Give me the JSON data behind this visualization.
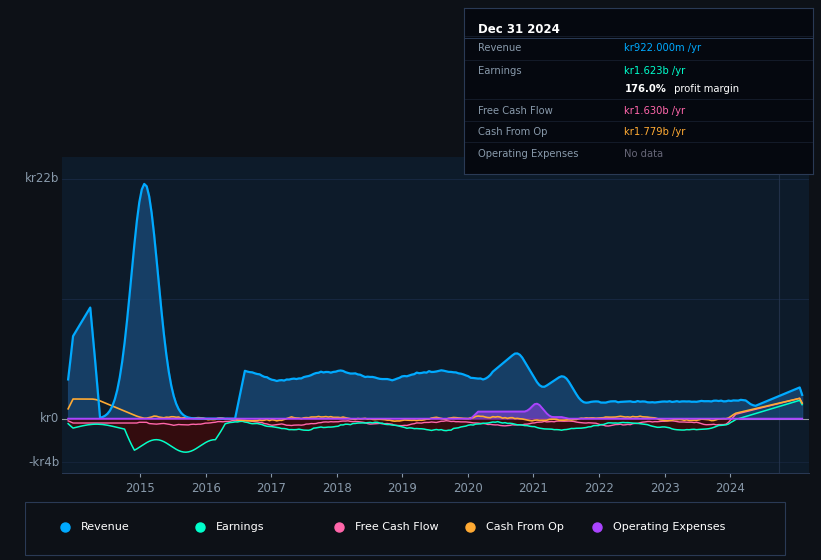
{
  "bg_color": "#0d1117",
  "plot_bg_color": "#0d1b2a",
  "grid_color": "#1e3050",
  "text_color": "#8899aa",
  "y_label_top": "kr22b",
  "y_label_zero": "kr0",
  "y_label_neg": "-kr4b",
  "ylim": [
    -5000000000.0,
    24000000000.0
  ],
  "xlim": [
    2013.8,
    2025.2
  ],
  "revenue_color": "#00aaff",
  "earnings_color": "#00ffcc",
  "fcf_color": "#ff66aa",
  "cashfromop_color": "#ffaa33",
  "opex_color": "#aa44ff",
  "revenue_fill_color": "#1a4a7a",
  "earnings_fill_color": "#3a0a0a",
  "legend_items": [
    {
      "label": "Revenue",
      "color": "#00aaff"
    },
    {
      "label": "Earnings",
      "color": "#00ffcc"
    },
    {
      "label": "Free Cash Flow",
      "color": "#ff66aa"
    },
    {
      "label": "Cash From Op",
      "color": "#ffaa33"
    },
    {
      "label": "Operating Expenses",
      "color": "#aa44ff"
    }
  ]
}
